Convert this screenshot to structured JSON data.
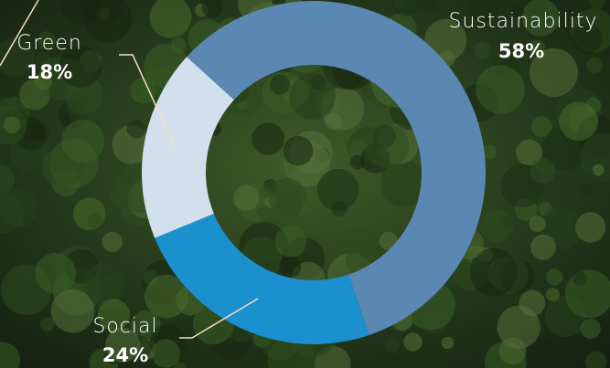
{
  "chart_data": {
    "type": "pie",
    "categories": [
      "Sustainability",
      "Social",
      "Green"
    ],
    "values": [
      58,
      24,
      18
    ],
    "value_labels": [
      "58%",
      "24%",
      "18%"
    ],
    "colors": [
      "#5b87b3",
      "#1b90cf",
      "#d2e0ee"
    ]
  }
}
